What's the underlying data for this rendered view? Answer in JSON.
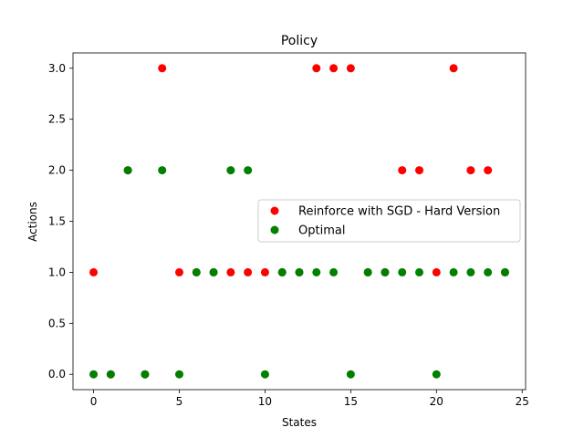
{
  "chart_data": {
    "type": "scatter",
    "title": "Policy",
    "xlabel": "States",
    "ylabel": "Actions",
    "xlim": [
      -1.2,
      25.2
    ],
    "ylim": [
      -0.15,
      3.15
    ],
    "xticks": [
      0,
      5,
      10,
      15,
      20,
      25
    ],
    "xtick_labels": [
      "0",
      "5",
      "10",
      "15",
      "20",
      "25"
    ],
    "yticks": [
      0.0,
      0.5,
      1.0,
      1.5,
      2.0,
      2.5,
      3.0
    ],
    "ytick_labels": [
      "0.0",
      "0.5",
      "1.0",
      "1.5",
      "2.0",
      "2.5",
      "3.0"
    ],
    "grid": false,
    "legend_position": "center-right",
    "x": [
      0,
      1,
      2,
      3,
      4,
      5,
      6,
      7,
      8,
      9,
      10,
      11,
      12,
      13,
      14,
      15,
      16,
      17,
      18,
      19,
      20,
      21,
      22,
      23,
      24
    ],
    "series": [
      {
        "name": "Reinforce with SGD - Hard Version",
        "color": "#ff0000",
        "values": [
          1,
          0,
          2,
          0,
          3,
          1,
          1,
          1,
          1,
          1,
          1,
          1,
          1,
          3,
          3,
          3,
          1,
          1,
          2,
          2,
          1,
          3,
          2,
          2,
          1
        ]
      },
      {
        "name": "Optimal",
        "color": "#008000",
        "values": [
          0,
          0,
          2,
          0,
          2,
          0,
          1,
          1,
          2,
          2,
          0,
          1,
          1,
          1,
          1,
          0,
          1,
          1,
          1,
          1,
          0,
          1,
          1,
          1,
          1
        ]
      }
    ]
  }
}
